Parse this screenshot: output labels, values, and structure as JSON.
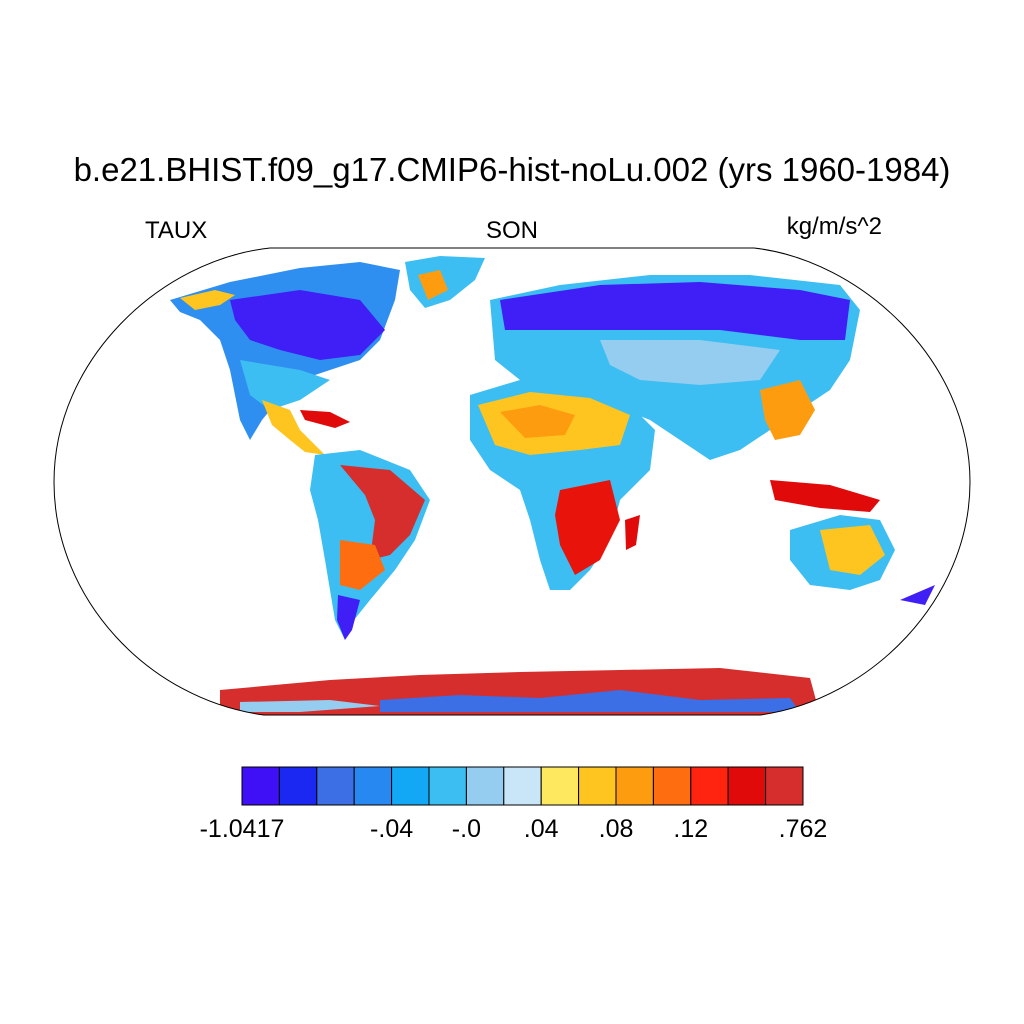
{
  "header": {
    "title": "b.e21.BHIST.f09_g17.CMIP6-hist-noLu.002 (yrs 1960-1984)",
    "variable": "TAUX",
    "season": "SON",
    "units": "kg/m/s^2"
  },
  "map": {
    "projection": "Robinson",
    "description_regions": [
      {
        "region": "North America (Canada/US)",
        "level": "low",
        "color": "#3f1ff5"
      },
      {
        "region": "Northern Eurasia",
        "level": "low",
        "color": "#3f1ff5"
      },
      {
        "region": "Sahara / North Africa",
        "level": "positive",
        "color": "#fec520"
      },
      {
        "region": "Amazon / Brazil",
        "level": "high",
        "color": "#d62d2d"
      },
      {
        "region": "Southern Africa",
        "level": "high",
        "color": "#e8140c"
      },
      {
        "region": "Antarctica coast",
        "level": "high",
        "color": "#d62d2d"
      },
      {
        "region": "Australia",
        "level": "positive",
        "color": "#fec520"
      }
    ]
  },
  "colorbar": {
    "colors": [
      "#3f0ff5",
      "#1a28f2",
      "#3c6ee6",
      "#2888f2",
      "#12a8f5",
      "#3cbef2",
      "#94cdef",
      "#c8e6f7",
      "#fee860",
      "#fec520",
      "#fe9c10",
      "#fe6e10",
      "#fe2410",
      "#e00a0a",
      "#d62d2d"
    ],
    "labels": [
      {
        "text": "-1.0417",
        "boundary_index": 0
      },
      {
        "text": "-.04",
        "boundary_index": 4
      },
      {
        "text": "-.0",
        "boundary_index": 6
      },
      {
        "text": ".04",
        "boundary_index": 8
      },
      {
        "text": ".08",
        "boundary_index": 10
      },
      {
        "text": ".12",
        "boundary_index": 12
      },
      {
        "text": ".762",
        "boundary_index": 15
      }
    ]
  }
}
